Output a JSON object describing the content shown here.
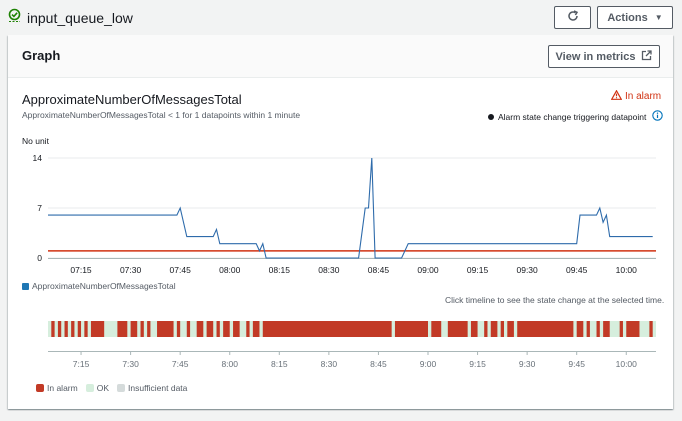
{
  "header": {
    "alarm_name": "input_queue_low",
    "actions_label": "Actions"
  },
  "graph": {
    "card_title": "Graph",
    "view_in_metrics_label": "View in metrics",
    "metric_title": "ApproximateNumberOfMessagesTotal",
    "condition_text": "ApproximateNumberOfMessagesTotal < 1 for 1 datapoints within 1 minute",
    "state_label": "In alarm",
    "trigger_legend": "Alarm state change triggering datapoint",
    "unit_label": "No unit",
    "series_legend": "ApproximateNumberOfMessagesTotal",
    "click_hint": "Click timeline to see the state change at the selected time."
  },
  "timeline_legend": {
    "in_alarm": "In alarm",
    "ok": "OK",
    "insufficient": "Insufficient data"
  },
  "colors": {
    "series": "#2e6bab",
    "threshold": "#d13212",
    "in_alarm": "#c23a26",
    "ok": "#d6eedd",
    "insufficient": "#d5dbdb",
    "ok_icon": "#1d8102"
  },
  "icons": {
    "status": "check-circle-icon",
    "refresh": "refresh-icon",
    "caret": "caret-down-icon",
    "external": "external-link-icon",
    "warning": "warning-triangle-icon",
    "info": "info-icon"
  },
  "chart_data": {
    "type": "line",
    "title": "ApproximateNumberOfMessagesTotal",
    "ylabel": "No unit",
    "ylim": [
      0,
      14
    ],
    "yticks": [
      0,
      7,
      14
    ],
    "xticks": [
      "07:15",
      "07:30",
      "07:45",
      "08:00",
      "08:15",
      "08:30",
      "08:45",
      "09:00",
      "09:15",
      "09:30",
      "09:45",
      "10:00"
    ],
    "x_start": "07:05",
    "x_end": "10:09",
    "threshold": 1,
    "series": [
      {
        "name": "ApproximateNumberOfMessagesTotal",
        "points": [
          [
            "07:05",
            6
          ],
          [
            "07:44",
            6
          ],
          [
            "07:45",
            7
          ],
          [
            "07:47",
            3
          ],
          [
            "07:55",
            3
          ],
          [
            "07:56",
            4
          ],
          [
            "07:57",
            2
          ],
          [
            "08:08",
            2
          ],
          [
            "08:09",
            1
          ],
          [
            "08:10",
            2
          ],
          [
            "08:11",
            0
          ],
          [
            "08:35",
            0
          ],
          [
            "08:39",
            0
          ],
          [
            "08:41",
            7
          ],
          [
            "08:42",
            7
          ],
          [
            "08:43",
            14
          ],
          [
            "08:44",
            0
          ],
          [
            "08:52",
            0
          ],
          [
            "08:54",
            2
          ],
          [
            "09:45",
            2
          ],
          [
            "09:46",
            6
          ],
          [
            "09:51",
            6
          ],
          [
            "09:52",
            7
          ],
          [
            "09:53",
            5
          ],
          [
            "09:54",
            6
          ],
          [
            "09:55",
            3
          ],
          [
            "10:08",
            3
          ]
        ]
      }
    ]
  },
  "timeline_data": {
    "x_start": "07:05",
    "x_end": "10:09",
    "xticks": [
      "7:15",
      "7:30",
      "7:45",
      "8:00",
      "8:15",
      "8:30",
      "8:45",
      "9:00",
      "9:15",
      "9:30",
      "9:45",
      "10:00"
    ],
    "alarm_segments": [
      [
        "07:06",
        "07:07"
      ],
      [
        "07:08",
        "07:09"
      ],
      [
        "07:10",
        "07:11"
      ],
      [
        "07:12",
        "07:13"
      ],
      [
        "07:14",
        "07:15"
      ],
      [
        "07:16",
        "07:17"
      ],
      [
        "07:18",
        "07:22"
      ],
      [
        "07:26",
        "07:29"
      ],
      [
        "07:30",
        "07:32"
      ],
      [
        "07:33",
        "07:34"
      ],
      [
        "07:35",
        "07:36"
      ],
      [
        "07:38",
        "07:43"
      ],
      [
        "07:44",
        "07:45"
      ],
      [
        "07:47",
        "07:48"
      ],
      [
        "07:50",
        "07:52"
      ],
      [
        "07:53",
        "07:55"
      ],
      [
        "07:56",
        "07:57"
      ],
      [
        "07:58",
        "08:00"
      ],
      [
        "08:01",
        "08:03"
      ],
      [
        "08:05",
        "08:06"
      ],
      [
        "08:07",
        "08:09"
      ],
      [
        "08:10",
        "08:49"
      ],
      [
        "08:50",
        "09:00"
      ],
      [
        "09:01",
        "09:04"
      ],
      [
        "09:06",
        "09:12"
      ],
      [
        "09:13",
        "09:15"
      ],
      [
        "09:17",
        "09:18"
      ],
      [
        "09:19",
        "09:21"
      ],
      [
        "09:22",
        "09:23"
      ],
      [
        "09:24",
        "09:26"
      ],
      [
        "09:27",
        "09:44"
      ],
      [
        "09:45",
        "09:47"
      ],
      [
        "09:48",
        "09:49"
      ],
      [
        "09:51",
        "09:52"
      ],
      [
        "09:53",
        "09:55"
      ],
      [
        "09:58",
        "09:59"
      ],
      [
        "10:00",
        "10:04"
      ],
      [
        "10:07",
        "10:08"
      ]
    ]
  }
}
